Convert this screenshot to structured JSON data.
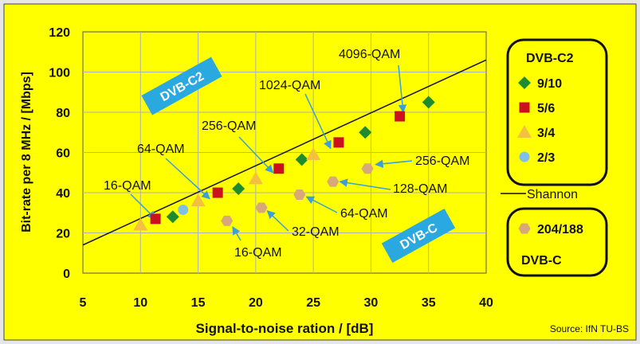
{
  "colors": {
    "panel_bg": "#ffff00",
    "outer_bg": "#e6e6e6",
    "diamond": "#1e8c2e",
    "square": "#cc1020",
    "triangle": "#f5c040",
    "circle": "#80c0e8",
    "hexagon": "#d9a878",
    "arrow": "#3aa0d8",
    "tag_bg": "#2aa8e0"
  },
  "chart_data": {
    "type": "scatter",
    "xlabel": "Signal-to-noise ration / [dB]",
    "ylabel": "Bit-rate per 8 MHz / [Mbps]",
    "xlim": [
      5,
      40
    ],
    "ylim": [
      0,
      120
    ],
    "xticks": [
      "5",
      "10",
      "15",
      "20",
      "25",
      "30",
      "35",
      "40"
    ],
    "yticks": [
      "0",
      "20",
      "40",
      "60",
      "80",
      "100",
      "120"
    ],
    "grid": true,
    "shannon_line": {
      "label": "Shannon",
      "points": [
        [
          5,
          14
        ],
        [
          40,
          106
        ]
      ]
    },
    "series": [
      {
        "name": "9/10",
        "group": "DVB-C2",
        "marker": "diamond",
        "points": [
          [
            12.8,
            28
          ],
          [
            18.5,
            42
          ],
          [
            24,
            56.5
          ],
          [
            29.5,
            70
          ],
          [
            35,
            85
          ]
        ]
      },
      {
        "name": "5/6",
        "group": "DVB-C2",
        "marker": "square",
        "points": [
          [
            11.3,
            27
          ],
          [
            16.7,
            40
          ],
          [
            22,
            52
          ],
          [
            27.2,
            65
          ],
          [
            32.5,
            78
          ]
        ]
      },
      {
        "name": "3/4",
        "group": "DVB-C2",
        "marker": "triangle",
        "points": [
          [
            10,
            24
          ],
          [
            15,
            36
          ],
          [
            20,
            47
          ],
          [
            25,
            59
          ]
        ]
      },
      {
        "name": "2/3",
        "group": "DVB-C2",
        "marker": "circle",
        "points": [
          [
            13.7,
            31.5
          ]
        ]
      },
      {
        "name": "204/188",
        "group": "DVB-C",
        "marker": "hexagon",
        "points": [
          [
            17.5,
            26
          ],
          [
            20.5,
            32.5
          ],
          [
            23.8,
            39
          ],
          [
            26.7,
            45.5
          ],
          [
            29.7,
            52
          ]
        ]
      }
    ],
    "annotations": [
      {
        "text": "16-QAM",
        "target": [
          11.3,
          27
        ]
      },
      {
        "text": "64-QAM",
        "target": [
          16,
          37
        ]
      },
      {
        "text": "256-QAM",
        "target": [
          21.5,
          50
        ]
      },
      {
        "text": "1024-QAM",
        "target": [
          26.5,
          62
        ]
      },
      {
        "text": "4096-QAM",
        "target": [
          32.8,
          80
        ]
      },
      {
        "text": "256-QAM",
        "target": [
          30.4,
          54
        ]
      },
      {
        "text": "128-QAM",
        "target": [
          27.3,
          45.5
        ]
      },
      {
        "text": "64-QAM",
        "target": [
          24.4,
          38
        ]
      },
      {
        "text": "32-QAM",
        "target": [
          21,
          31
        ]
      },
      {
        "text": "16-QAM",
        "target": [
          18,
          23
        ]
      }
    ],
    "region_labels": [
      "DVB-C2",
      "DVB-C"
    ],
    "legend": {
      "c2_title": "DVB-C2",
      "c2_items": [
        "9/10",
        "5/6",
        "3/4",
        "2/3"
      ],
      "c_item": "204/188",
      "c_title": "DVB-C"
    },
    "source": "Source: IfN TU-BS"
  }
}
